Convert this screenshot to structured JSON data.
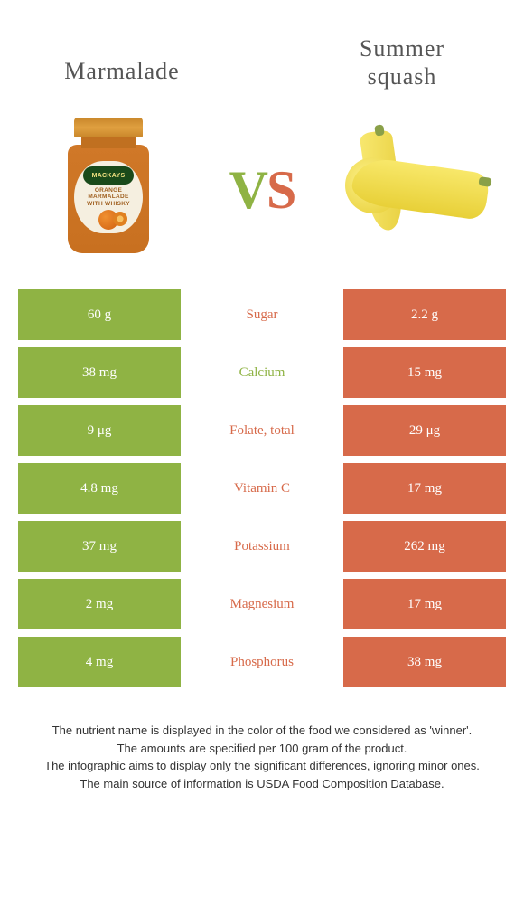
{
  "titles": {
    "left": "Marmalade",
    "right_line1": "Summer",
    "right_line2": "squash"
  },
  "vs": {
    "v": "V",
    "s": "S"
  },
  "jar": {
    "brand": "MACKAYS",
    "line1": "ORANGE",
    "line2": "MARMALADE",
    "line3": "WITH WHISKY"
  },
  "colors": {
    "left": "#8fb344",
    "right": "#d76a4a",
    "mid_text": "#444444",
    "cell_text": "#ffffff"
  },
  "rows": [
    {
      "left": "60 g",
      "label": "Sugar",
      "right": "2.2 g",
      "winner": "right"
    },
    {
      "left": "38 mg",
      "label": "Calcium",
      "right": "15 mg",
      "winner": "left"
    },
    {
      "left": "9 μg",
      "label": "Folate, total",
      "right": "29 μg",
      "winner": "right"
    },
    {
      "left": "4.8 mg",
      "label": "Vitamin C",
      "right": "17 mg",
      "winner": "right"
    },
    {
      "left": "37 mg",
      "label": "Potassium",
      "right": "262 mg",
      "winner": "right"
    },
    {
      "left": "2 mg",
      "label": "Magnesium",
      "right": "17 mg",
      "winner": "right"
    },
    {
      "left": "4 mg",
      "label": "Phosphorus",
      "right": "38 mg",
      "winner": "right"
    }
  ],
  "footer": {
    "l1": "The nutrient name is displayed in the color of the food we considered as 'winner'.",
    "l2": "The amounts are specified per 100 gram of the product.",
    "l3": "The infographic aims to display only the significant differences, ignoring minor ones.",
    "l4": "The main source of information is USDA Food Composition Database."
  }
}
